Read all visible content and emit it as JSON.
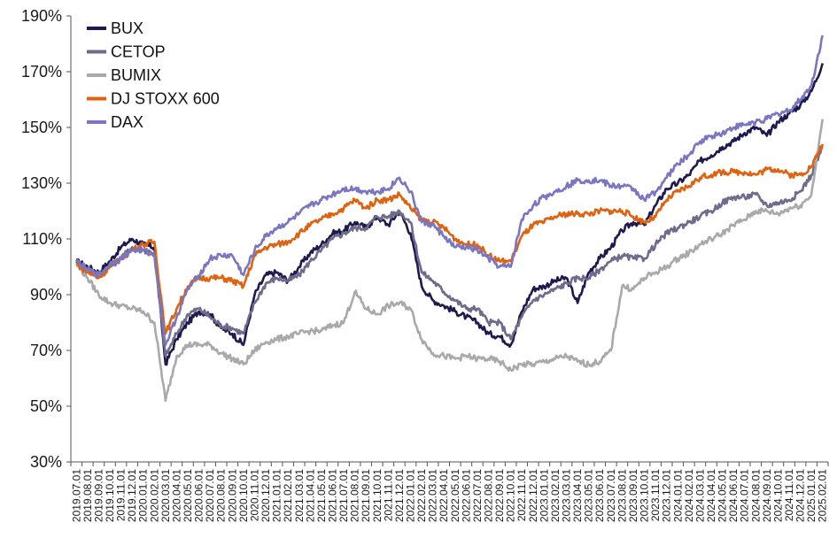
{
  "chart_data": {
    "type": "line",
    "title": "",
    "xlabel": "",
    "ylabel": "",
    "ylim": [
      30,
      190
    ],
    "y_ticks": [
      "30%",
      "50%",
      "70%",
      "90%",
      "110%",
      "130%",
      "150%",
      "170%",
      "190%"
    ],
    "y_tick_values": [
      30,
      50,
      70,
      90,
      110,
      130,
      150,
      170,
      190
    ],
    "grid": false,
    "legend_position": "top-left",
    "x_tick_labels": [
      "2019.07.01",
      "2019.08.01",
      "2019.09.01",
      "2019.10.01",
      "2019.11.01",
      "2019.12.01",
      "2020.01.01",
      "2020.02.01",
      "2020.03.01",
      "2020.04.01",
      "2020.05.01",
      "2020.06.01",
      "2020.07.01",
      "2020.08.01",
      "2020.09.01",
      "2020.10.01",
      "2020.11.01",
      "2020.12.01",
      "2021.01.01",
      "2021.02.01",
      "2021.03.01",
      "2021.04.01",
      "2021.05.01",
      "2021.06.01",
      "2021.07.01",
      "2021.08.01",
      "2021.09.01",
      "2021.10.01",
      "2021.11.01",
      "2021.12.01",
      "2022.01.01",
      "2022.02.01",
      "2022.03.01",
      "2022.04.01",
      "2022.05.01",
      "2022.06.01",
      "2022.07.01",
      "2022.08.01",
      "2022.09.01",
      "2022.10.01",
      "2022.11.01",
      "2022.12.01",
      "2023.01.01",
      "2023.02.01",
      "2023.03.01",
      "2023.04.01",
      "2023.05.01",
      "2023.06.01",
      "2023.07.01",
      "2023.08.01",
      "2023.09.01",
      "2023.10.01",
      "2023.11.01",
      "2023.12.01",
      "2024.01.01",
      "2024.02.01",
      "2024.03.01",
      "2024.04.01",
      "2024.05.01",
      "2024.06.01",
      "2024.07.01",
      "2024.08.01",
      "2024.09.01",
      "2024.10.01",
      "2024.11.01",
      "2024.12.01",
      "2025.01.01",
      "2025.02.01"
    ],
    "series": [
      {
        "name": "BUX",
        "color": "#1c1a4f",
        "values": [
          102,
          100,
          98,
          102,
          107,
          110,
          108,
          107,
          65,
          74,
          80,
          84,
          83,
          78,
          76,
          72,
          90,
          97,
          98,
          95,
          100,
          105,
          108,
          112,
          113,
          116,
          114,
          118,
          115,
          120,
          112,
          93,
          88,
          86,
          84,
          82,
          80,
          76,
          75,
          72,
          84,
          92,
          93,
          95,
          96,
          87,
          98,
          103,
          107,
          113,
          116,
          115,
          122,
          128,
          130,
          133,
          138,
          140,
          143,
          145,
          148,
          150,
          147,
          152,
          155,
          158,
          163,
          173
        ]
      },
      {
        "name": "CETOP",
        "color": "#6e6b8c",
        "values": [
          102,
          99,
          97,
          100,
          103,
          107,
          106,
          105,
          68,
          76,
          83,
          85,
          82,
          79,
          78,
          76,
          87,
          94,
          96,
          95,
          97,
          102,
          106,
          110,
          112,
          114,
          114,
          118,
          118,
          120,
          116,
          98,
          95,
          91,
          88,
          85,
          85,
          80,
          80,
          74,
          82,
          88,
          90,
          92,
          94,
          96,
          96,
          99,
          102,
          104,
          103,
          103,
          108,
          112,
          114,
          116,
          118,
          120,
          123,
          125,
          125,
          126,
          122,
          123,
          124,
          127,
          133,
          143
        ]
      },
      {
        "name": "BUMIX",
        "color": "#a9a9a9",
        "values": [
          101,
          96,
          90,
          87,
          86,
          85,
          84,
          80,
          52,
          68,
          72,
          72,
          72,
          69,
          67,
          65,
          70,
          73,
          74,
          75,
          76,
          77,
          77,
          79,
          80,
          91,
          85,
          83,
          86,
          87,
          85,
          74,
          69,
          68,
          67,
          68,
          67,
          67,
          66,
          63,
          65,
          65,
          66,
          67,
          68,
          66,
          65,
          66,
          70,
          93,
          92,
          96,
          98,
          100,
          103,
          105,
          108,
          110,
          112,
          115,
          117,
          120,
          120,
          119,
          121,
          122,
          126,
          153
        ]
      },
      {
        "name": "DJ STOXX 600",
        "color": "#e0610e",
        "values": [
          101,
          98,
          96,
          100,
          103,
          106,
          108,
          109,
          76,
          85,
          93,
          96,
          96,
          96,
          95,
          93,
          104,
          107,
          108,
          109,
          112,
          115,
          117,
          119,
          121,
          124,
          121,
          124,
          124,
          126,
          121,
          117,
          116,
          114,
          110,
          108,
          108,
          104,
          102,
          102,
          111,
          115,
          116,
          118,
          119,
          119,
          119,
          120,
          120,
          120,
          118,
          116,
          118,
          124,
          127,
          129,
          132,
          133,
          134,
          134,
          134,
          133,
          135,
          135,
          133,
          133,
          136,
          144
        ]
      },
      {
        "name": "DAX",
        "color": "#7a76c4",
        "values": [
          102,
          99,
          97,
          101,
          103,
          106,
          106,
          104,
          72,
          82,
          92,
          97,
          103,
          104,
          104,
          97,
          106,
          111,
          114,
          116,
          119,
          122,
          124,
          126,
          128,
          128,
          127,
          127,
          128,
          132,
          127,
          116,
          115,
          111,
          107,
          107,
          106,
          103,
          100,
          100,
          117,
          122,
          125,
          127,
          129,
          131,
          131,
          131,
          129,
          129,
          128,
          124,
          127,
          132,
          137,
          140,
          145,
          147,
          148,
          150,
          151,
          152,
          153,
          155,
          156,
          160,
          165,
          183
        ]
      }
    ]
  }
}
